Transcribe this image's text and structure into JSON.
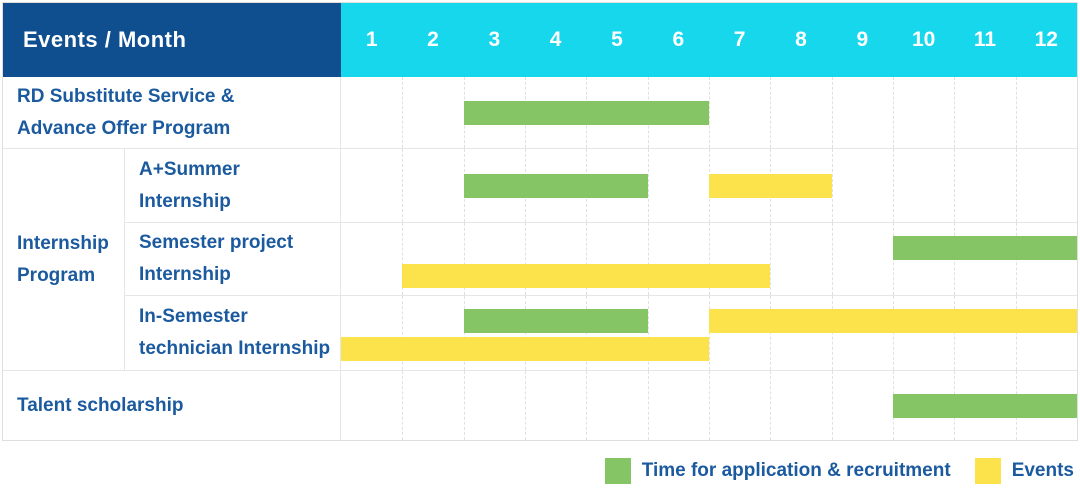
{
  "header": {
    "title": "Events / Month"
  },
  "colors": {
    "application": "#85c566",
    "events": "#fde34b",
    "header_navy": "#0f4f8f",
    "header_cyan": "#17d7ec",
    "label_text": "#1b5a9e",
    "grid_dash": "#e0e0e0"
  },
  "chart_data": {
    "type": "bar",
    "variant": "gantt-schedule",
    "title": "Events / Month",
    "x_axis_label": "Month",
    "x_range": [
      1,
      12
    ],
    "x_ticks": [
      "1",
      "2",
      "3",
      "4",
      "5",
      "6",
      "7",
      "8",
      "9",
      "10",
      "11",
      "12"
    ],
    "grid": "dashed-vertical-month-lines",
    "legend_position": "bottom-right",
    "legend": [
      {
        "series": "application",
        "label": "Time for application & recruitment",
        "color": "#85c566"
      },
      {
        "series": "events",
        "label": "Events",
        "color": "#fde34b"
      }
    ],
    "rows": [
      {
        "group": "",
        "label": "RD Substitute Service &\nAdvance Offer Program",
        "bars": [
          {
            "series": "application",
            "start": 3,
            "end": 6,
            "lane": "center"
          }
        ]
      },
      {
        "group": "Internship\nProgram",
        "label": "A+Summer\nInternship",
        "bars": [
          {
            "series": "application",
            "start": 3,
            "end": 5,
            "lane": "center"
          },
          {
            "series": "events",
            "start": 7,
            "end": 8,
            "lane": "center"
          }
        ]
      },
      {
        "group": "Internship\nProgram",
        "label": "Semester project\nInternship",
        "bars": [
          {
            "series": "application",
            "start": 10,
            "end": 12,
            "lane": "top"
          },
          {
            "series": "events",
            "start": 2,
            "end": 7,
            "lane": "bottom"
          }
        ]
      },
      {
        "group": "Internship\nProgram",
        "label": "In-Semester\ntechnician Internship",
        "bars": [
          {
            "series": "application",
            "start": 3,
            "end": 5,
            "lane": "top"
          },
          {
            "series": "events",
            "start": 7,
            "end": 12,
            "lane": "top"
          },
          {
            "series": "events",
            "start": 1,
            "end": 6,
            "lane": "bottom"
          }
        ]
      },
      {
        "group": "",
        "label": "Talent scholarship",
        "bars": [
          {
            "series": "application",
            "start": 10,
            "end": 12,
            "lane": "center"
          }
        ]
      }
    ]
  }
}
